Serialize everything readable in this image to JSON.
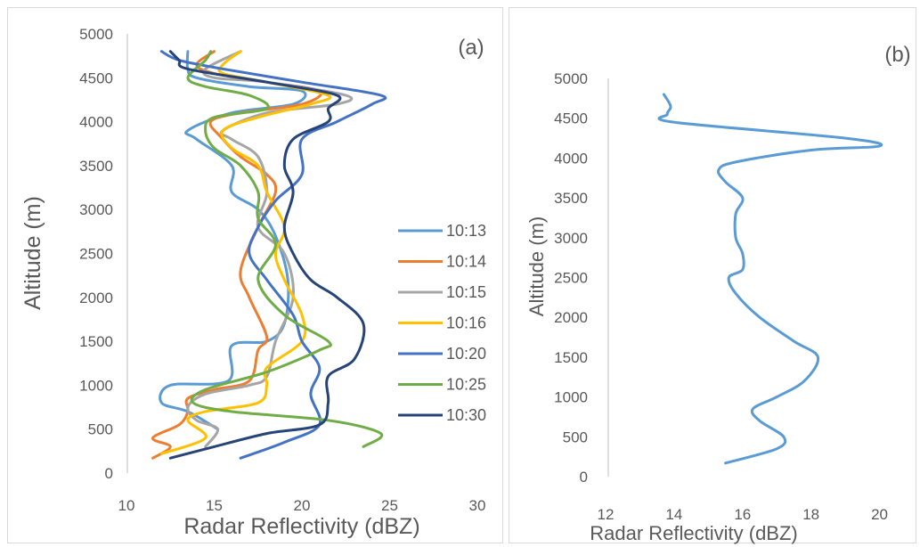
{
  "chart_data": [
    {
      "type": "line",
      "panel_label": "(a)",
      "xlabel": "Radar Reflectivity (dBZ)",
      "ylabel": "Altitude (m)",
      "xlim": [
        10,
        30
      ],
      "ylim": [
        0,
        5000
      ],
      "xticks": [
        "10",
        "15",
        "20",
        "25",
        "30"
      ],
      "yticks": [
        "0",
        "500",
        "1000",
        "1500",
        "2000",
        "2500",
        "3000",
        "3500",
        "4000",
        "4500",
        "5000"
      ],
      "grid": false,
      "legend_position": "right",
      "series": [
        {
          "name": "10:13",
          "color": "#5B9BD5",
          "points": [
            [
              15.2,
              500
            ],
            [
              13.5,
              700
            ],
            [
              12,
              800
            ],
            [
              12.5,
              1000
            ],
            [
              15.8,
              1050
            ],
            [
              16,
              1450
            ],
            [
              18,
              1500
            ],
            [
              19,
              1700
            ],
            [
              19.2,
              2200
            ],
            [
              18.5,
              2700
            ],
            [
              17.5,
              3000
            ],
            [
              16,
              3200
            ],
            [
              16,
              3500
            ],
            [
              14,
              3800
            ],
            [
              13.5,
              3900
            ],
            [
              16,
              4100
            ],
            [
              19.5,
              4200
            ],
            [
              20,
              4350
            ],
            [
              17,
              4400
            ],
            [
              14,
              4500
            ],
            [
              13.5,
              4600
            ],
            [
              13.5,
              4800
            ]
          ]
        },
        {
          "name": "10:14",
          "color": "#ED7D31",
          "points": [
            [
              11.5,
              170
            ],
            [
              12.5,
              300
            ],
            [
              11.5,
              400
            ],
            [
              13,
              550
            ],
            [
              13.5,
              700
            ],
            [
              13.5,
              850
            ],
            [
              15,
              950
            ],
            [
              17,
              1050
            ],
            [
              17.5,
              1400
            ],
            [
              18,
              1550
            ],
            [
              17,
              2000
            ],
            [
              16.5,
              2300
            ],
            [
              17.5,
              2800
            ],
            [
              18.5,
              3200
            ],
            [
              18,
              3400
            ],
            [
              16.5,
              3600
            ],
            [
              15.5,
              3800
            ],
            [
              14.8,
              4000
            ],
            [
              16.5,
              4100
            ],
            [
              20,
              4200
            ],
            [
              21,
              4350
            ],
            [
              18,
              4450
            ],
            [
              15,
              4550
            ],
            [
              14,
              4650
            ],
            [
              15,
              4800
            ]
          ]
        },
        {
          "name": "10:15",
          "color": "#A5A5A5",
          "points": [
            [
              14.5,
              300
            ],
            [
              15.2,
              500
            ],
            [
              14,
              600
            ],
            [
              13.5,
              750
            ],
            [
              14.5,
              900
            ],
            [
              17,
              1000
            ],
            [
              18,
              1100
            ],
            [
              18.5,
              1500
            ],
            [
              19.5,
              2000
            ],
            [
              19,
              2500
            ],
            [
              17.5,
              2800
            ],
            [
              18,
              3200
            ],
            [
              17.5,
              3600
            ],
            [
              16,
              3800
            ],
            [
              15.5,
              3900
            ],
            [
              18,
              4100
            ],
            [
              22,
              4200
            ],
            [
              22.5,
              4300
            ],
            [
              18,
              4450
            ],
            [
              15,
              4500
            ],
            [
              14.5,
              4600
            ],
            [
              16.5,
              4800
            ]
          ]
        },
        {
          "name": "10:16",
          "color": "#FFC000",
          "points": [
            [
              12,
              220
            ],
            [
              14.5,
              400
            ],
            [
              13.5,
              600
            ],
            [
              14.5,
              700
            ],
            [
              17.5,
              800
            ],
            [
              18,
              1000
            ],
            [
              18,
              1200
            ],
            [
              20,
              1500
            ],
            [
              20,
              1800
            ],
            [
              19,
              2200
            ],
            [
              18.5,
              2500
            ],
            [
              19,
              2800
            ],
            [
              18,
              3200
            ],
            [
              17.5,
              3500
            ],
            [
              16,
              3700
            ],
            [
              15.5,
              3900
            ],
            [
              17.5,
              4050
            ],
            [
              20.5,
              4200
            ],
            [
              21.5,
              4300
            ],
            [
              18,
              4450
            ],
            [
              15.5,
              4550
            ],
            [
              15.5,
              4650
            ],
            [
              16.5,
              4800
            ]
          ]
        },
        {
          "name": "10:20",
          "color": "#4472C4",
          "points": [
            [
              16.5,
              170
            ],
            [
              19,
              350
            ],
            [
              21,
              550
            ],
            [
              20.5,
              900
            ],
            [
              21,
              1200
            ],
            [
              20,
              1500
            ],
            [
              19.5,
              1800
            ],
            [
              18,
              2200
            ],
            [
              17,
              2500
            ],
            [
              17.5,
              2800
            ],
            [
              18.5,
              3100
            ],
            [
              20,
              3400
            ],
            [
              20,
              3800
            ],
            [
              22,
              4000
            ],
            [
              24,
              4200
            ],
            [
              24.5,
              4300
            ],
            [
              20,
              4450
            ],
            [
              15.5,
              4600
            ],
            [
              13,
              4700
            ],
            [
              12,
              4800
            ]
          ]
        },
        {
          "name": "10:25",
          "color": "#70AD47",
          "points": [
            [
              23.5,
              300
            ],
            [
              24.5,
              450
            ],
            [
              21.5,
              600
            ],
            [
              16,
              700
            ],
            [
              13.8,
              800
            ],
            [
              14.5,
              950
            ],
            [
              18,
              1150
            ],
            [
              21,
              1400
            ],
            [
              21.5,
              1500
            ],
            [
              19,
              1800
            ],
            [
              17.5,
              2200
            ],
            [
              18.5,
              2600
            ],
            [
              17.5,
              2900
            ],
            [
              17.5,
              3200
            ],
            [
              16.5,
              3500
            ],
            [
              15,
              3700
            ],
            [
              14.5,
              3900
            ],
            [
              15,
              4050
            ],
            [
              18,
              4150
            ],
            [
              17,
              4300
            ],
            [
              14.5,
              4400
            ],
            [
              13.5,
              4500
            ],
            [
              14.5,
              4700
            ],
            [
              14.8,
              4800
            ]
          ]
        },
        {
          "name": "10:30",
          "color": "#264478",
          "points": [
            [
              12.5,
              170
            ],
            [
              15,
              300
            ],
            [
              18,
              450
            ],
            [
              21,
              550
            ],
            [
              21.5,
              800
            ],
            [
              21.5,
              1100
            ],
            [
              23,
              1300
            ],
            [
              23.5,
              1700
            ],
            [
              22,
              2000
            ],
            [
              20.5,
              2200
            ],
            [
              19.5,
              2500
            ],
            [
              19,
              2800
            ],
            [
              19.5,
              3200
            ],
            [
              19,
              3500
            ],
            [
              19.5,
              3800
            ],
            [
              21.5,
              4000
            ],
            [
              21.5,
              4150
            ],
            [
              22,
              4300
            ],
            [
              18,
              4450
            ],
            [
              13.5,
              4600
            ],
            [
              13,
              4700
            ],
            [
              12.5,
              4800
            ]
          ]
        }
      ]
    },
    {
      "type": "line",
      "panel_label": "(b)",
      "xlabel": "Radar  Reflectivity (dBZ)",
      "ylabel": "Altitude (m)",
      "xlim": [
        12,
        21
      ],
      "ylim": [
        0,
        5000
      ],
      "xticks": [
        "12",
        "14",
        "16",
        "18",
        "20"
      ],
      "yticks": [
        "0",
        "500",
        "1000",
        "1500",
        "2000",
        "2500",
        "3000",
        "3500",
        "4000",
        "4500",
        "5000"
      ],
      "grid": false,
      "series": [
        {
          "color": "#5B9BD5",
          "points": [
            [
              15.5,
              170
            ],
            [
              17,
              350
            ],
            [
              17.2,
              500
            ],
            [
              16.5,
              700
            ],
            [
              16.3,
              850
            ],
            [
              17,
              1000
            ],
            [
              17.8,
              1200
            ],
            [
              18.2,
              1500
            ],
            [
              17.5,
              1700
            ],
            [
              16.5,
              2000
            ],
            [
              15.8,
              2300
            ],
            [
              15.6,
              2500
            ],
            [
              16,
              2600
            ],
            [
              16,
              2800
            ],
            [
              15.8,
              3000
            ],
            [
              15.8,
              3300
            ],
            [
              16,
              3500
            ],
            [
              15.5,
              3700
            ],
            [
              15.3,
              3850
            ],
            [
              15.8,
              3950
            ],
            [
              18,
              4100
            ],
            [
              20,
              4150
            ],
            [
              19,
              4250
            ],
            [
              14,
              4450
            ],
            [
              13.8,
              4550
            ],
            [
              13.9,
              4650
            ],
            [
              13.7,
              4800
            ]
          ]
        }
      ]
    }
  ]
}
